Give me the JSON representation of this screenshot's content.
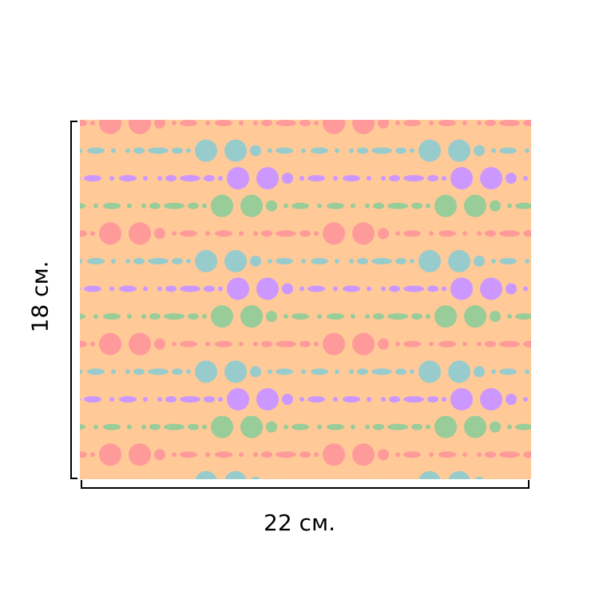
{
  "dimensions": {
    "width_label": "22 см.",
    "height_label": "18 см."
  },
  "pattern": {
    "background": "#FFC998",
    "colors": {
      "pink": "#FF9A9A",
      "teal": "#98CCCC",
      "purple": "#CC98FF",
      "green": "#98CC98"
    },
    "row_order": [
      "pink",
      "teal",
      "purple",
      "green"
    ]
  },
  "colors": {
    "dimension_line": "#000000"
  }
}
